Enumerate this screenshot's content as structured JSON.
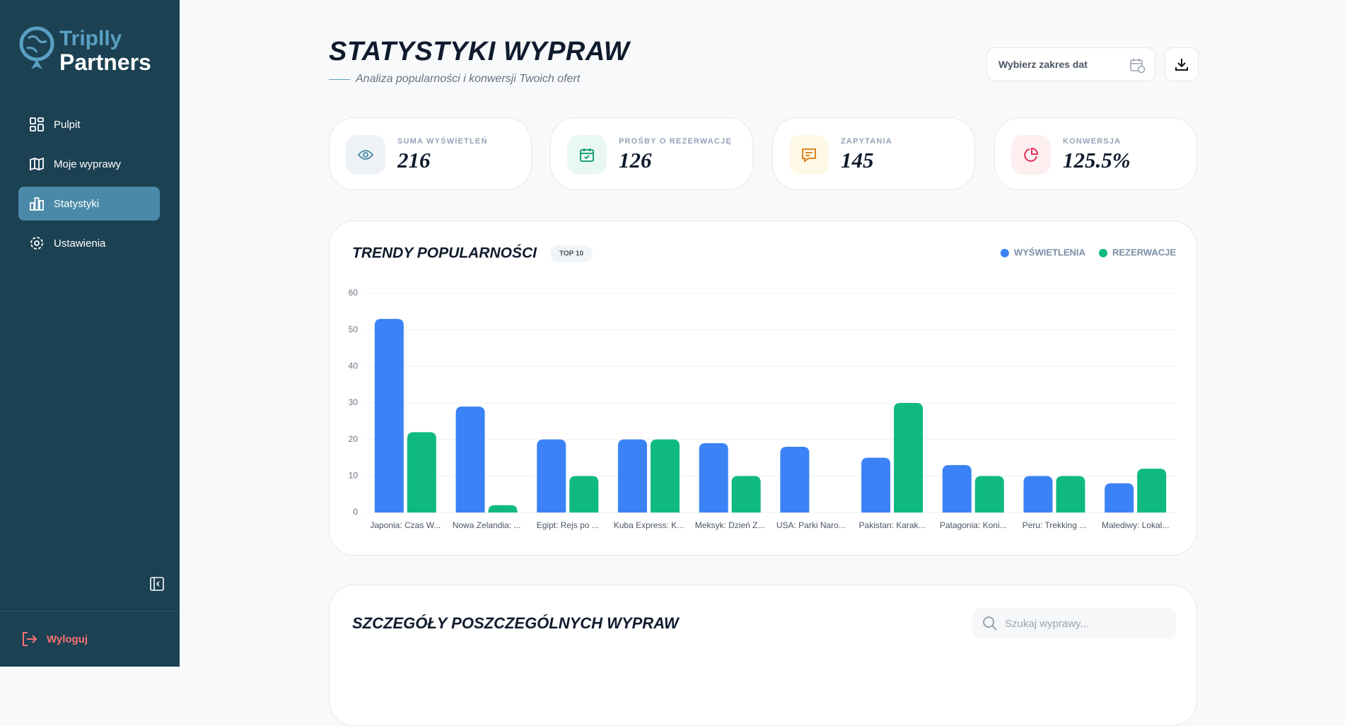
{
  "sidebar": {
    "logo": {
      "top": "Triplly",
      "bottom": "Partners"
    },
    "nav": [
      "Pulpit",
      "Moje wyprawy",
      "Statystyki",
      "Ustawienia"
    ],
    "logout": "Wyloguj"
  },
  "header": {
    "title": "STATYSTYKI WYPRAW",
    "subtitle": "Analiza popularności i konwersji Twoich ofert",
    "date_picker": "Wybierz zakres dat"
  },
  "stats": [
    {
      "label": "SUMA WYŚWIETLEŃ",
      "value": "216"
    },
    {
      "label": "PROŚBY O REZERWACJĘ",
      "value": "126"
    },
    {
      "label": "ZAPYTANIA",
      "value": "145"
    },
    {
      "label": "KONWERSJA",
      "value": "125.5%"
    }
  ],
  "chart_data": {
    "type": "bar",
    "title": "TRENDY POPULARNOŚCI",
    "badge": "TOP 10",
    "categories": [
      "Japonia: Czas W...",
      "Nowa Zelandia: ...",
      "Egipt: Rejs po ...",
      "Kuba Express: K...",
      "Meksyk: Dzień Z...",
      "USA: Parki Naro...",
      "Pakistan: Karak...",
      "Patagonia: Koni...",
      "Peru: Trekking ...",
      "Malediwy: Lokal..."
    ],
    "series": [
      {
        "name": "WYŚWIETLENIA",
        "color": "#3b82f6",
        "values": [
          53,
          29,
          20,
          20,
          19,
          18,
          15,
          13,
          10,
          8
        ]
      },
      {
        "name": "REZERWACJE",
        "color": "#10b981",
        "values": [
          22,
          2,
          10,
          20,
          10,
          0,
          30,
          10,
          10,
          12
        ]
      }
    ],
    "ylim": [
      0,
      60
    ],
    "yticks": [
      0,
      10,
      20,
      30,
      40,
      50,
      60
    ],
    "grid": true
  },
  "details": {
    "title": "SZCZEGÓŁY POSZCZEGÓLNYCH WYPRAW",
    "search_placeholder": "Szukaj wyprawy..."
  }
}
